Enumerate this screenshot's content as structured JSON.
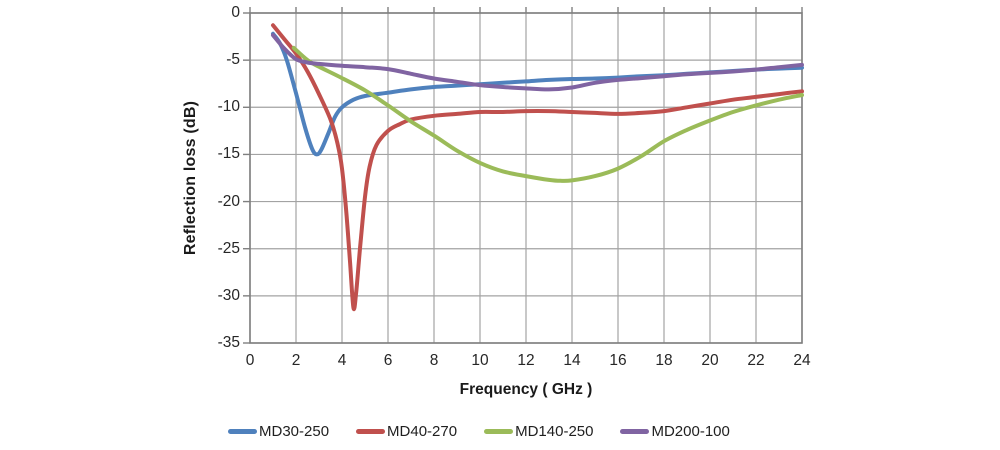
{
  "chart_data": {
    "type": "line",
    "title": "",
    "xlabel": "Frequency ( GHz )",
    "ylabel": "Reflection loss (dB)",
    "xlim": [
      0,
      24
    ],
    "ylim": [
      -35,
      0
    ],
    "grid": true,
    "legend_position": "bottom",
    "x_ticks": [
      0,
      2,
      4,
      6,
      8,
      10,
      12,
      14,
      16,
      18,
      20,
      22,
      24
    ],
    "y_ticks": [
      0,
      -5,
      -10,
      -15,
      -20,
      -25,
      -30,
      -35
    ],
    "colors": {
      "gridline": "#a3a3a3",
      "axis_border": "#7f7f7f",
      "text": "#262626"
    },
    "series": [
      {
        "name": "MD30-250",
        "color": "#4F81BD",
        "points": [
          [
            1,
            -2.2
          ],
          [
            1.3,
            -3.2
          ],
          [
            1.6,
            -5.0
          ],
          [
            2,
            -8.5
          ],
          [
            2.4,
            -12.2
          ],
          [
            2.7,
            -14.4
          ],
          [
            2.9,
            -15.0
          ],
          [
            3.1,
            -14.5
          ],
          [
            3.4,
            -12.8
          ],
          [
            3.7,
            -11.0
          ],
          [
            4,
            -10.0
          ],
          [
            4.5,
            -9.2
          ],
          [
            5,
            -8.8
          ],
          [
            6,
            -8.45
          ],
          [
            7,
            -8.1
          ],
          [
            8,
            -7.85
          ],
          [
            9,
            -7.7
          ],
          [
            10,
            -7.55
          ],
          [
            11,
            -7.4
          ],
          [
            12,
            -7.25
          ],
          [
            13,
            -7.1
          ],
          [
            14,
            -7.0
          ],
          [
            15,
            -6.95
          ],
          [
            16,
            -6.85
          ],
          [
            17,
            -6.7
          ],
          [
            18,
            -6.6
          ],
          [
            19,
            -6.45
          ],
          [
            20,
            -6.3
          ],
          [
            21,
            -6.15
          ],
          [
            22,
            -6.0
          ],
          [
            23,
            -5.9
          ],
          [
            24,
            -5.8
          ]
        ]
      },
      {
        "name": "MD40-270",
        "color": "#C0504D",
        "points": [
          [
            1,
            -1.3
          ],
          [
            1.5,
            -2.8
          ],
          [
            2,
            -4.3
          ],
          [
            2.5,
            -6.2
          ],
          [
            3,
            -8.6
          ],
          [
            3.5,
            -11.3
          ],
          [
            3.8,
            -13.8
          ],
          [
            4,
            -16.5
          ],
          [
            4.2,
            -21.5
          ],
          [
            4.35,
            -26.5
          ],
          [
            4.5,
            -31.3
          ],
          [
            4.62,
            -29.5
          ],
          [
            4.8,
            -24.5
          ],
          [
            5,
            -19.5
          ],
          [
            5.2,
            -16.3
          ],
          [
            5.5,
            -14.0
          ],
          [
            6,
            -12.5
          ],
          [
            6.5,
            -11.8
          ],
          [
            7,
            -11.3
          ],
          [
            8,
            -10.9
          ],
          [
            9,
            -10.7
          ],
          [
            10,
            -10.5
          ],
          [
            11,
            -10.5
          ],
          [
            12,
            -10.4
          ],
          [
            13,
            -10.4
          ],
          [
            14,
            -10.5
          ],
          [
            15,
            -10.6
          ],
          [
            16,
            -10.7
          ],
          [
            17,
            -10.6
          ],
          [
            18,
            -10.4
          ],
          [
            19,
            -10.0
          ],
          [
            20,
            -9.6
          ],
          [
            21,
            -9.2
          ],
          [
            22,
            -8.9
          ],
          [
            23,
            -8.6
          ],
          [
            24,
            -8.3
          ]
        ]
      },
      {
        "name": "MD140-250",
        "color": "#9BBB59",
        "points": [
          [
            1.9,
            -3.7
          ],
          [
            2.5,
            -5.0
          ],
          [
            3,
            -5.7
          ],
          [
            4,
            -6.9
          ],
          [
            5,
            -8.2
          ],
          [
            6,
            -9.8
          ],
          [
            7,
            -11.5
          ],
          [
            8,
            -13.0
          ],
          [
            9,
            -14.6
          ],
          [
            10,
            -15.9
          ],
          [
            11,
            -16.8
          ],
          [
            12,
            -17.3
          ],
          [
            13,
            -17.7
          ],
          [
            13.5,
            -17.8
          ],
          [
            14,
            -17.75
          ],
          [
            15,
            -17.3
          ],
          [
            16,
            -16.5
          ],
          [
            17,
            -15.2
          ],
          [
            18,
            -13.6
          ],
          [
            19,
            -12.4
          ],
          [
            20,
            -11.4
          ],
          [
            21,
            -10.5
          ],
          [
            22,
            -9.8
          ],
          [
            23,
            -9.2
          ],
          [
            24,
            -8.7
          ]
        ]
      },
      {
        "name": "MD200-100",
        "color": "#8064A2",
        "points": [
          [
            1,
            -2.35
          ],
          [
            1.5,
            -3.8
          ],
          [
            2,
            -4.9
          ],
          [
            2.5,
            -5.25
          ],
          [
            3,
            -5.4
          ],
          [
            4,
            -5.6
          ],
          [
            5,
            -5.75
          ],
          [
            6,
            -5.95
          ],
          [
            7,
            -6.45
          ],
          [
            8,
            -6.95
          ],
          [
            9,
            -7.3
          ],
          [
            10,
            -7.65
          ],
          [
            11,
            -7.85
          ],
          [
            12,
            -8.0
          ],
          [
            13,
            -8.1
          ],
          [
            14,
            -7.9
          ],
          [
            15,
            -7.4
          ],
          [
            16,
            -7.1
          ],
          [
            17,
            -6.9
          ],
          [
            18,
            -6.7
          ],
          [
            19,
            -6.5
          ],
          [
            20,
            -6.35
          ],
          [
            21,
            -6.2
          ],
          [
            22,
            -6.0
          ],
          [
            23,
            -5.75
          ],
          [
            24,
            -5.5
          ]
        ]
      }
    ]
  }
}
